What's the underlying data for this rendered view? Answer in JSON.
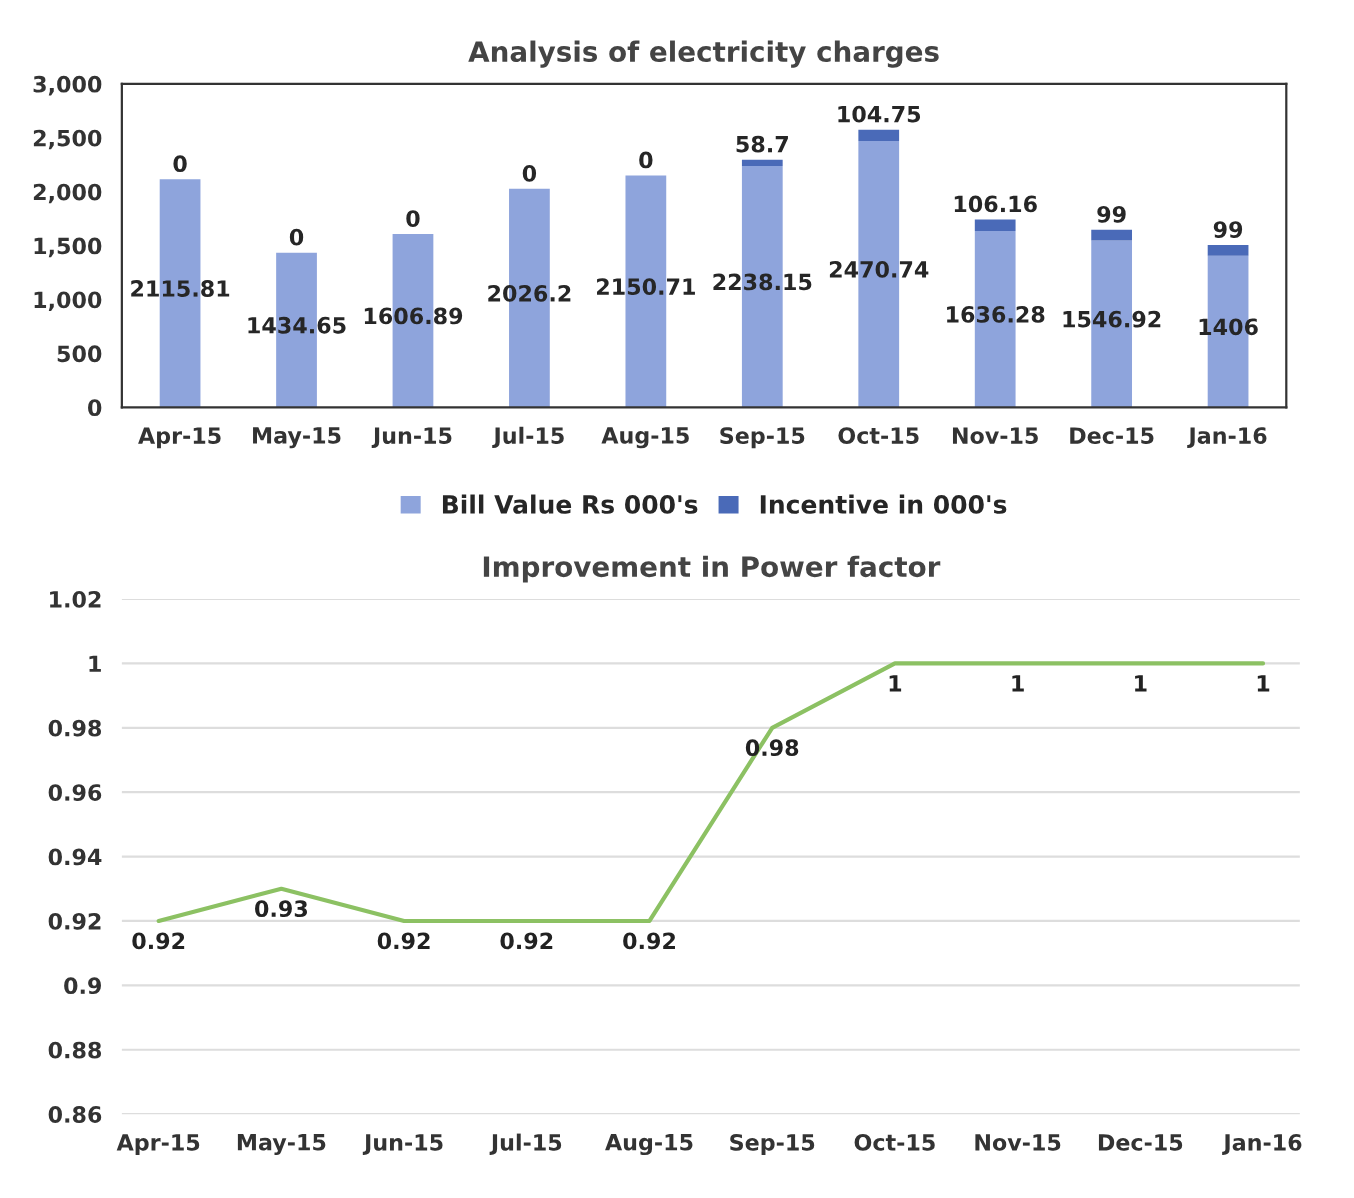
{
  "chart_data": [
    {
      "type": "bar",
      "title": "Analysis of electricity charges",
      "stacked": true,
      "categories": [
        "Apr-15",
        "May-15",
        "Jun-15",
        "Jul-15",
        "Aug-15",
        "Sep-15",
        "Oct-15",
        "Nov-15",
        "Dec-15",
        "Jan-16"
      ],
      "series": [
        {
          "name": "Bill Value Rs 000's",
          "color": "#8ea4dc",
          "values": [
            2115.81,
            1434.65,
            1606.89,
            2026.2,
            2150.71,
            2238.15,
            2470.74,
            1636.28,
            1546.92,
            1406
          ]
        },
        {
          "name": "Incentive in 000's",
          "color": "#4a6ab8",
          "values": [
            0,
            0,
            0,
            0,
            0,
            58.7,
            104.75,
            106.16,
            99,
            99
          ]
        }
      ],
      "ylim": [
        0,
        3000
      ],
      "yticks": [
        0,
        500,
        {
          "value": 1000,
          "label": "1,000"
        },
        {
          "value": 1500,
          "label": "1,500"
        },
        {
          "value": 2000,
          "label": "2,000"
        },
        {
          "value": 2500,
          "label": "2,500"
        },
        {
          "value": 3000,
          "label": "3,000"
        }
      ],
      "data_labels": true,
      "legend": "bottom",
      "grid": false
    },
    {
      "type": "line",
      "title": "Improvement in Power factor",
      "categories": [
        "Apr-15",
        "May-15",
        "Jun-15",
        "Jul-15",
        "Aug-15",
        "Sep-15",
        "Oct-15",
        "Nov-15",
        "Dec-15",
        "Jan-16"
      ],
      "series": [
        {
          "color": "#8cc163",
          "values": [
            0.92,
            0.93,
            0.92,
            0.92,
            0.92,
            0.98,
            1,
            1,
            1,
            1
          ]
        }
      ],
      "ylim": [
        0.86,
        1.02
      ],
      "yticks": [
        0.86,
        0.88,
        0.9,
        0.92,
        0.94,
        0.96,
        0.98,
        1,
        1.02
      ],
      "data_labels": true,
      "grid": "y",
      "marker": "none",
      "line_style": "solid"
    }
  ]
}
